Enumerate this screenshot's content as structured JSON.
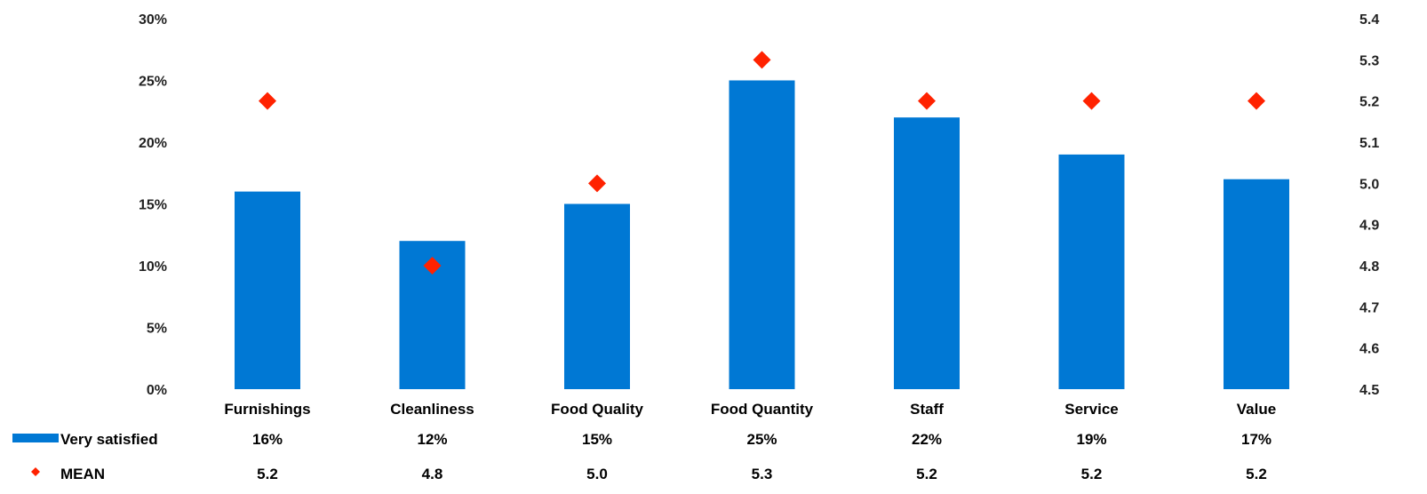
{
  "chart_data": {
    "type": "bar",
    "categories": [
      "Furnishings",
      "Cleanliness",
      "Food Quality",
      "Food Quantity",
      "Staff",
      "Service",
      "Value"
    ],
    "series": [
      {
        "name": "Very satisfied",
        "kind": "bar",
        "axis": "left",
        "color": "#0078D4",
        "values": [
          16,
          12,
          15,
          25,
          22,
          19,
          17
        ],
        "labels": [
          "16%",
          "12%",
          "15%",
          "25%",
          "22%",
          "19%",
          "17%"
        ]
      },
      {
        "name": "MEAN",
        "kind": "scatter",
        "marker": "diamond",
        "axis": "right",
        "color": "#FF2200",
        "values": [
          5.2,
          4.8,
          5.0,
          5.3,
          5.2,
          5.2,
          5.2
        ],
        "labels": [
          "5.2",
          "4.8",
          "5.0",
          "5.3",
          "5.2",
          "5.2",
          "5.2"
        ]
      }
    ],
    "left_axis": {
      "min": 0,
      "max": 30,
      "step": 5,
      "ticks": [
        "0%",
        "5%",
        "10%",
        "15%",
        "20%",
        "25%",
        "30%"
      ]
    },
    "right_axis": {
      "min": 4.5,
      "max": 5.4,
      "step": 0.1,
      "ticks": [
        "4.5",
        "4.6",
        "4.7",
        "4.8",
        "4.9",
        "5.0",
        "5.1",
        "5.2",
        "5.3",
        "5.4"
      ]
    },
    "title": "",
    "xlabel": "",
    "ylabel": "",
    "grid": false,
    "legend_placement": "bottom-left data table"
  }
}
